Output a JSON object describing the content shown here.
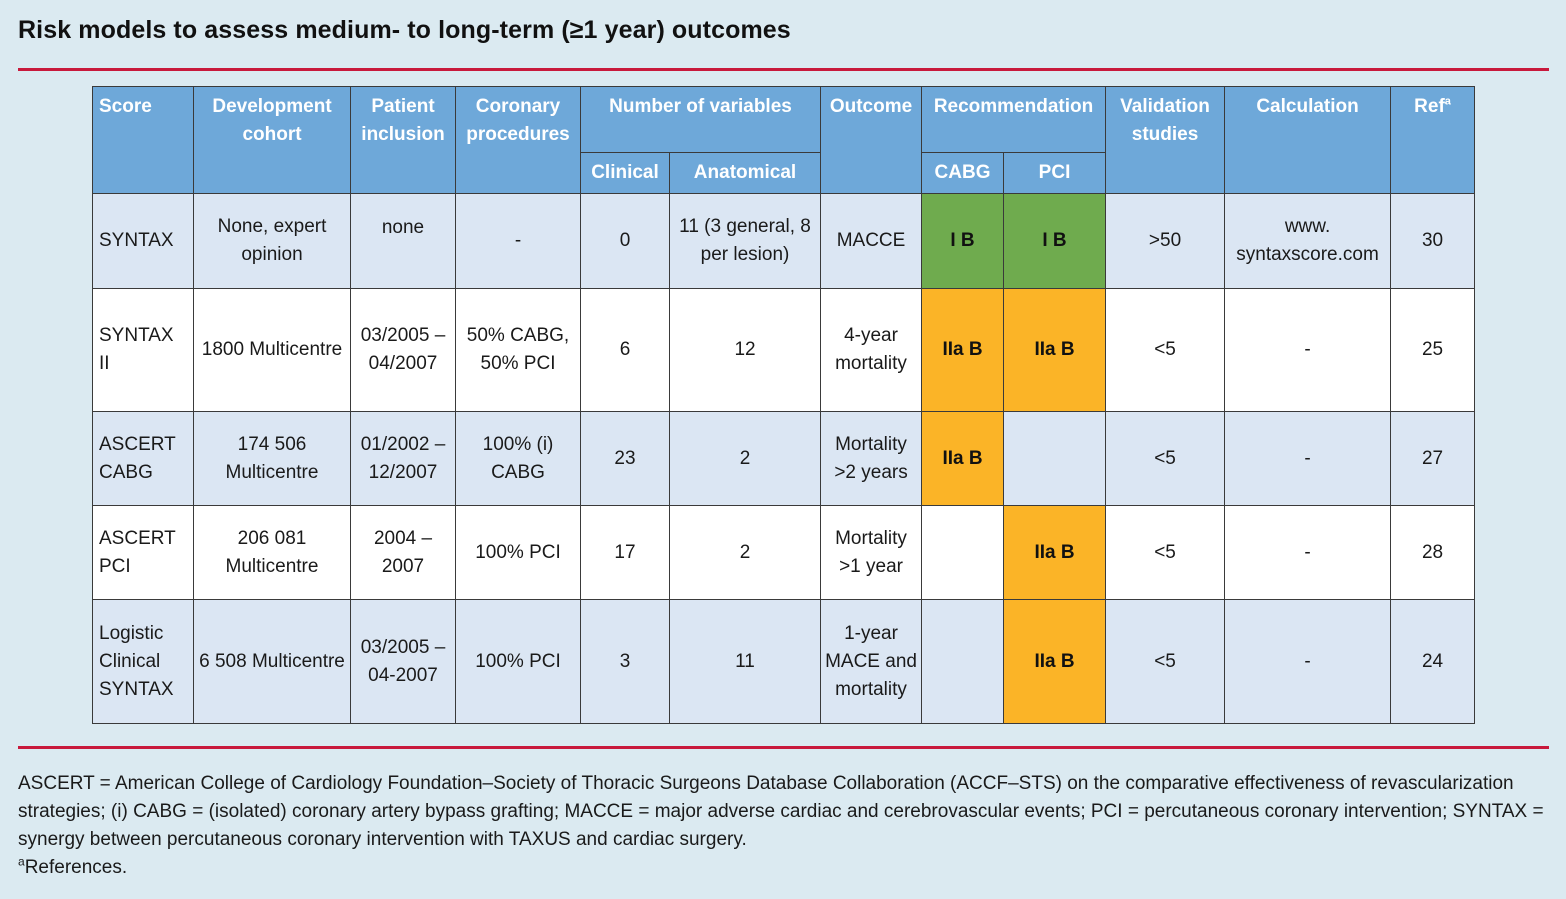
{
  "title": "Risk models to assess medium- to long-term (≥1 year) outcomes",
  "table": {
    "headers": {
      "score": "Score",
      "development_cohort": "Development cohort",
      "patient_inclusion": "Patient inclusion",
      "coronary_procedures": "Coronary procedures",
      "number_of_variables": "Number of variables",
      "clinical": "Clinical",
      "anatomical": "Anatomical",
      "outcome": "Outcome",
      "recommendation": "Recommendation",
      "cabg": "CABG",
      "pci": "PCI",
      "validation_studies": "Validation studies",
      "calculation": "Calculation",
      "ref": "Ref",
      "ref_sup": "a"
    },
    "rows": [
      {
        "score": "SYNTAX",
        "cohort": "None, expert opinion",
        "inclusion": "none",
        "procedures": "-",
        "clinical": "0",
        "anatomical": "11 (3 general, 8 per lesion)",
        "outcome": "MACCE",
        "cabg": "I B",
        "pci": "I B",
        "validation": ">50",
        "calculation": "www. syntaxscore.com",
        "ref": "30"
      },
      {
        "score": "SYNTAX II",
        "cohort": "1800 Multicentre",
        "inclusion": "03/2005 – 04/2007",
        "procedures": "50% CABG, 50% PCI",
        "clinical": "6",
        "anatomical": "12",
        "outcome": "4-year mortality",
        "cabg": "IIa B",
        "pci": "IIa B",
        "validation": "<5",
        "calculation": "-",
        "ref": "25"
      },
      {
        "score": "ASCERT CABG",
        "cohort": "174 506 Multicentre",
        "inclusion": "01/2002 – 12/2007",
        "procedures": "100% (i) CABG",
        "clinical": "23",
        "anatomical": "2",
        "outcome": "Mortality >2 years",
        "cabg": "IIa B",
        "pci": "",
        "validation": "<5",
        "calculation": "-",
        "ref": "27"
      },
      {
        "score": "ASCERT PCI",
        "cohort": "206 081 Multicentre",
        "inclusion": "2004 – 2007",
        "procedures": "100% PCI",
        "clinical": "17",
        "anatomical": "2",
        "outcome": "Mortality >1 year",
        "cabg": "",
        "pci": "IIa B",
        "validation": "<5",
        "calculation": "-",
        "ref": "28"
      },
      {
        "score": "Logistic Clinical SYNTAX",
        "cohort": "6 508 Multicentre",
        "inclusion": "03/2005 – 04-2007",
        "procedures": "100% PCI",
        "clinical": "3",
        "anatomical": "11",
        "outcome": "1-year MACE and mortality",
        "cabg": "",
        "pci": "IIa B",
        "validation": "<5",
        "calculation": "-",
        "ref": "24"
      }
    ]
  },
  "footnote": {
    "abbreviations": "ASCERT = American College of Cardiology Foundation–Society of Thoracic Surgeons Database Collaboration (ACCF–STS) on the comparative effectiveness of revascularization strategies; (i) CABG = (isolated) coronary artery bypass grafting; MACCE = major adverse cardiac and cerebrovascular events; PCI = percutaneous coronary intervention; SYNTAX = synergy between percutaneous coronary intervention with TAXUS and cardiac surgery.",
    "ref_marker": "a",
    "ref_text": "References."
  },
  "colors": {
    "background": "#dbeaf1",
    "header": "#6ea8d9",
    "row_shaded": "#dbe6f3",
    "rule": "#c8193c",
    "class_I": "#6fab4e",
    "class_IIa": "#fbb427"
  }
}
